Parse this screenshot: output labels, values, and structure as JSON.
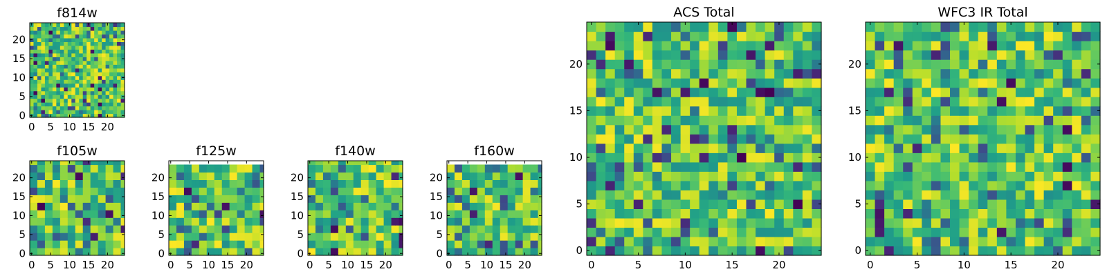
{
  "chart_data": [
    {
      "type": "heatmap",
      "title": "f814w",
      "colormap": "viridis",
      "xticks": [
        0,
        5,
        10,
        15,
        20
      ],
      "yticks": [
        0,
        5,
        10,
        15,
        20
      ],
      "xlim": [
        -0.5,
        24.5
      ],
      "ylim": [
        -0.5,
        24.5
      ],
      "grid_size": 25,
      "pixel_block": 1,
      "blank_top_rows": 0,
      "blank_left_cols": 0,
      "blank_right_cols": 0,
      "seed": 11
    },
    {
      "type": "heatmap",
      "title": "f105w",
      "colormap": "viridis",
      "xticks": [
        0,
        5,
        10,
        15,
        20
      ],
      "yticks": [
        0,
        5,
        10,
        15,
        20
      ],
      "xlim": [
        -0.5,
        24.5
      ],
      "ylim": [
        -0.5,
        24.5
      ],
      "grid_size": 25,
      "pixel_block": 2,
      "blank_top_rows": 0,
      "blank_left_cols": 0,
      "blank_right_cols": 0,
      "seed": 23
    },
    {
      "type": "heatmap",
      "title": "f125w",
      "colormap": "viridis",
      "xticks": [
        0,
        5,
        10,
        15,
        20
      ],
      "yticks": [
        0,
        5,
        10,
        15,
        20
      ],
      "xlim": [
        -0.5,
        24.5
      ],
      "ylim": [
        -0.5,
        24.5
      ],
      "grid_size": 25,
      "pixel_block": 2,
      "blank_top_rows": 1,
      "blank_left_cols": 0,
      "blank_right_cols": 0,
      "seed": 37
    },
    {
      "type": "heatmap",
      "title": "f140w",
      "colormap": "viridis",
      "xticks": [
        0,
        5,
        10,
        15,
        20
      ],
      "yticks": [
        0,
        5,
        10,
        15,
        20
      ],
      "xlim": [
        -0.5,
        24.5
      ],
      "ylim": [
        -0.5,
        24.5
      ],
      "grid_size": 25,
      "pixel_block": 2,
      "blank_top_rows": 0,
      "blank_left_cols": 0,
      "blank_right_cols": 0,
      "seed": 41
    },
    {
      "type": "heatmap",
      "title": "f160w",
      "colormap": "viridis",
      "xticks": [
        0,
        5,
        10,
        15,
        20
      ],
      "yticks": [
        0,
        5,
        10,
        15,
        20
      ],
      "xlim": [
        -0.5,
        24.5
      ],
      "ylim": [
        -0.5,
        24.5
      ],
      "grid_size": 25,
      "pixel_block": 2,
      "blank_top_rows": 1,
      "blank_left_cols": 0,
      "blank_right_cols": 0,
      "seed": 53
    },
    {
      "type": "heatmap",
      "title": "ACS Total",
      "colormap": "viridis",
      "xticks": [
        0,
        5,
        10,
        15,
        20
      ],
      "yticks": [
        0,
        5,
        10,
        15,
        20
      ],
      "xlim": [
        -0.5,
        24.5
      ],
      "ylim": [
        -0.5,
        24.5
      ],
      "grid_size": 25,
      "pixel_block": 1,
      "blank_top_rows": 0,
      "blank_left_cols": 0,
      "blank_right_cols": 0,
      "seed": 67
    },
    {
      "type": "heatmap",
      "title": "WFC3 IR Total",
      "colormap": "viridis",
      "xticks": [
        0,
        5,
        10,
        15,
        20
      ],
      "yticks": [
        0,
        5,
        10,
        15,
        20
      ],
      "xlim": [
        -0.5,
        24.5
      ],
      "ylim": [
        -0.5,
        24.5
      ],
      "grid_size": 25,
      "pixel_block": 1,
      "blank_top_rows": 0,
      "blank_left_cols": 0,
      "blank_right_cols": 0,
      "seed": 79
    }
  ]
}
